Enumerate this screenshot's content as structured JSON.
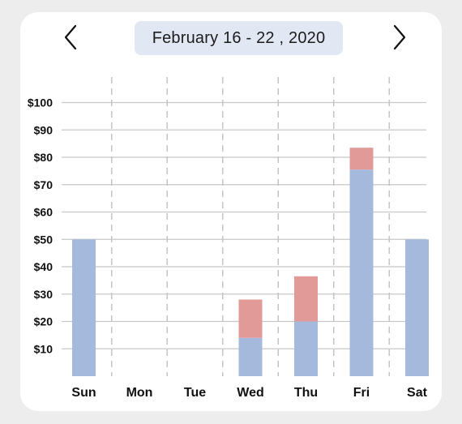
{
  "header": {
    "date_range": "February 16 - 22 , 2020",
    "prev_icon": "chevron-left-icon",
    "next_icon": "chevron-right-icon"
  },
  "colors": {
    "primary_series": "#a5b9dc",
    "secondary_series": "#e29a98",
    "grid": "#c8c8c8",
    "divider": "#c4c4c4",
    "pill": "#e2e7f4"
  },
  "chart_data": {
    "type": "bar",
    "stacked": true,
    "categories": [
      "Sun",
      "Mon",
      "Tue",
      "Wed",
      "Thu",
      "Fri",
      "Sat"
    ],
    "series": [
      {
        "values": [
          50,
          0,
          0,
          14,
          20,
          75.5,
          50
        ]
      },
      {
        "values": [
          0,
          0,
          0,
          14,
          16.5,
          8,
          0
        ]
      }
    ],
    "yticks": [
      10,
      20,
      30,
      40,
      50,
      60,
      70,
      80,
      90,
      100
    ],
    "ytick_labels": [
      "$10",
      "$20",
      "$30",
      "$40",
      "$50",
      "$60",
      "$70",
      "$80",
      "$90",
      "$100"
    ],
    "ylim": [
      0,
      100
    ],
    "grid": true,
    "legend": "none"
  }
}
